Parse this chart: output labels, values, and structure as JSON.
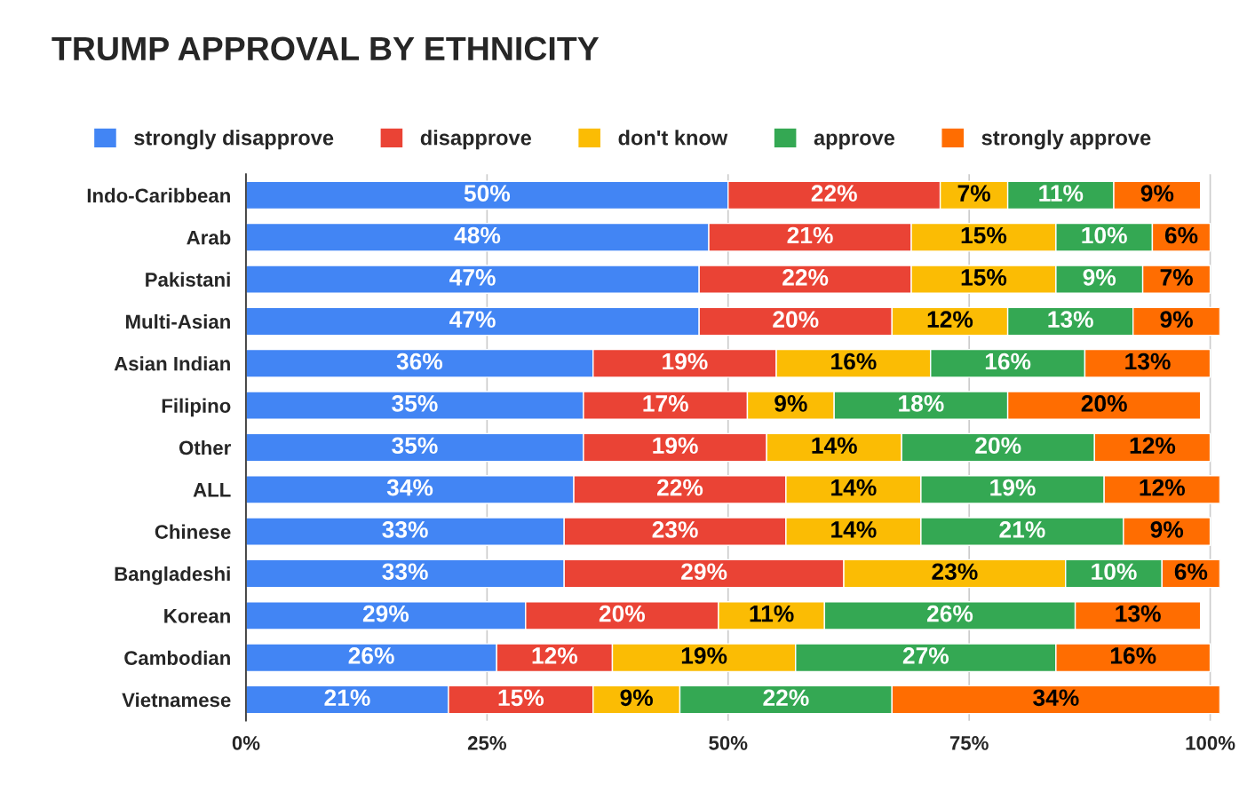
{
  "chart_data": {
    "type": "bar",
    "title": "TRUMP APPROVAL BY ETHNICITY",
    "orientation": "horizontal",
    "stacked": true,
    "categories": [
      "Indo-Caribbean",
      "Arab",
      "Pakistani",
      "Multi-Asian",
      "Asian Indian",
      "Filipino",
      "Other",
      "ALL",
      "Chinese",
      "Bangladeshi",
      "Korean",
      "Cambodian",
      "Vietnamese"
    ],
    "series": [
      {
        "name": "strongly disapprove",
        "color": "#4285f4",
        "values": [
          50,
          48,
          47,
          47,
          36,
          35,
          35,
          34,
          33,
          33,
          29,
          26,
          21
        ],
        "value_labels": [
          "50%",
          "48%",
          "47%",
          "47%",
          "36%",
          "35%",
          "35%",
          "34%",
          "33%",
          "33%",
          "29%",
          "26%",
          "21%"
        ]
      },
      {
        "name": "disapprove",
        "color": "#ea4335",
        "values": [
          22,
          21,
          22,
          20,
          19,
          17,
          19,
          22,
          23,
          29,
          20,
          12,
          15
        ],
        "value_labels": [
          "22%",
          "21%",
          "22%",
          "20%",
          "19%",
          "17%",
          "19%",
          "22%",
          "23%",
          "29%",
          "20%",
          "12%",
          "15%"
        ]
      },
      {
        "name": "don't know",
        "color": "#fbbc04",
        "values": [
          7,
          15,
          15,
          12,
          16,
          9,
          14,
          14,
          14,
          23,
          11,
          19,
          9
        ],
        "value_labels": [
          "7%",
          "15%",
          "15%",
          "12%",
          "16%",
          "9%",
          "14%",
          "14%",
          "14%",
          "23%",
          "11%",
          "19%",
          "9%"
        ]
      },
      {
        "name": "approve",
        "color": "#34a853",
        "values": [
          11,
          10,
          9,
          13,
          16,
          18,
          20,
          19,
          21,
          10,
          26,
          27,
          22
        ],
        "value_labels": [
          "11%",
          "10%",
          "9%",
          "13%",
          "16%",
          "18%",
          "20%",
          "19%",
          "21%",
          "10%",
          "26%",
          "27%",
          "22%"
        ]
      },
      {
        "name": "strongly approve",
        "color": "#ff6d01",
        "values": [
          9,
          6,
          7,
          9,
          13,
          20,
          12,
          12,
          9,
          6,
          13,
          16,
          34
        ],
        "value_labels": [
          "9%",
          "6%",
          "7%",
          "9%",
          "13%",
          "20%",
          "12%",
          "12%",
          "9%",
          "6%",
          "13%",
          "16%",
          "34%"
        ]
      }
    ],
    "xlim": [
      0,
      101
    ],
    "xticks": [
      {
        "value": 0,
        "label": "0%"
      },
      {
        "value": 25,
        "label": "25%"
      },
      {
        "value": 50,
        "label": "50%"
      },
      {
        "value": 75,
        "label": "75%"
      },
      {
        "value": 100,
        "label": "100%"
      }
    ],
    "grid": "x",
    "legend": "top"
  }
}
